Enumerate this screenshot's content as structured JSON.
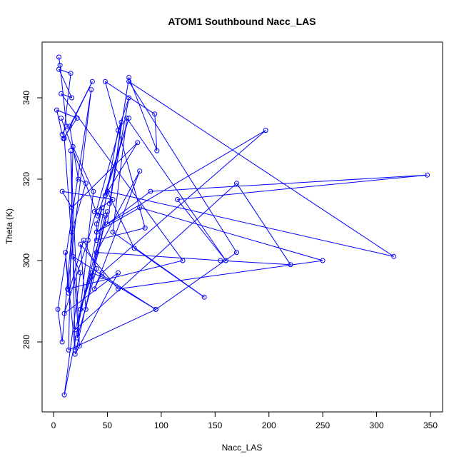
{
  "chart_data": {
    "type": "scatter",
    "title": "ATOM1 Southbound Nacc_LAS",
    "xlabel": "Nacc_LAS",
    "ylabel": "Theta (K)",
    "xlim": [
      0,
      350
    ],
    "ylim": [
      265,
      352
    ],
    "x_ticks": [
      0,
      50,
      100,
      150,
      200,
      250,
      300,
      350
    ],
    "y_ticks": [
      280,
      300,
      320,
      340
    ],
    "x_tick_labels": [
      "0",
      "50",
      "100",
      "150",
      "200",
      "250",
      "300",
      "350"
    ],
    "y_tick_labels": [
      "280",
      "300",
      "320",
      "340"
    ],
    "grid": false,
    "legend": "none",
    "marker": "open-circle",
    "connected": true,
    "color": "#0000ff",
    "series": [
      {
        "x": [
          5,
          6,
          12,
          8,
          3,
          22,
          9,
          16,
          5,
          17,
          7,
          120,
          13,
          35,
          4,
          8,
          17,
          30,
          23,
          15,
          36,
          10,
          24,
          16,
          20,
          11,
          14,
          28,
          40,
          22,
          37,
          18,
          14,
          95,
          18,
          25,
          10,
          45,
          40,
          40,
          85,
          48,
          94,
          96,
          70,
          52,
          70,
          60,
          30,
          25,
          60,
          250,
          80,
          40,
          90,
          347,
          115,
          160,
          68,
          55,
          140,
          75,
          50,
          316,
          70,
          170,
          95,
          45,
          35,
          20,
          170,
          220,
          155,
          40,
          80,
          38,
          45,
          197,
          50,
          63,
          32,
          10,
          60,
          20,
          50,
          35,
          25,
          48,
          38,
          55,
          8,
          17,
          78,
          48,
          70,
          41,
          7
        ],
        "y": [
          350,
          348,
          333,
          331,
          337,
          335,
          330,
          346,
          347,
          340,
          341,
          300,
          293,
          342,
          288,
          280,
          307,
          319,
          320,
          333,
          344,
          330,
          279,
          327,
          278,
          302,
          292,
          305,
          298,
          281,
          317,
          328,
          278,
          288,
          301,
          297,
          267,
          313,
          309,
          305,
          308,
          344,
          336,
          327,
          345,
          314,
          340,
          332,
          288,
          304,
          293,
          300,
          313,
          307,
          317,
          321,
          315,
          300,
          335,
          307,
          291,
          303,
          317,
          301,
          344,
          302,
          288,
          296,
          297,
          283,
          319,
          299,
          300,
          302,
          322,
          293,
          297,
          332,
          309,
          334,
          305,
          287,
          297,
          277,
          312,
          296,
          288,
          311,
          312,
          315,
          317,
          313,
          329,
          316,
          335,
          311,
          335
        ]
      }
    ]
  }
}
